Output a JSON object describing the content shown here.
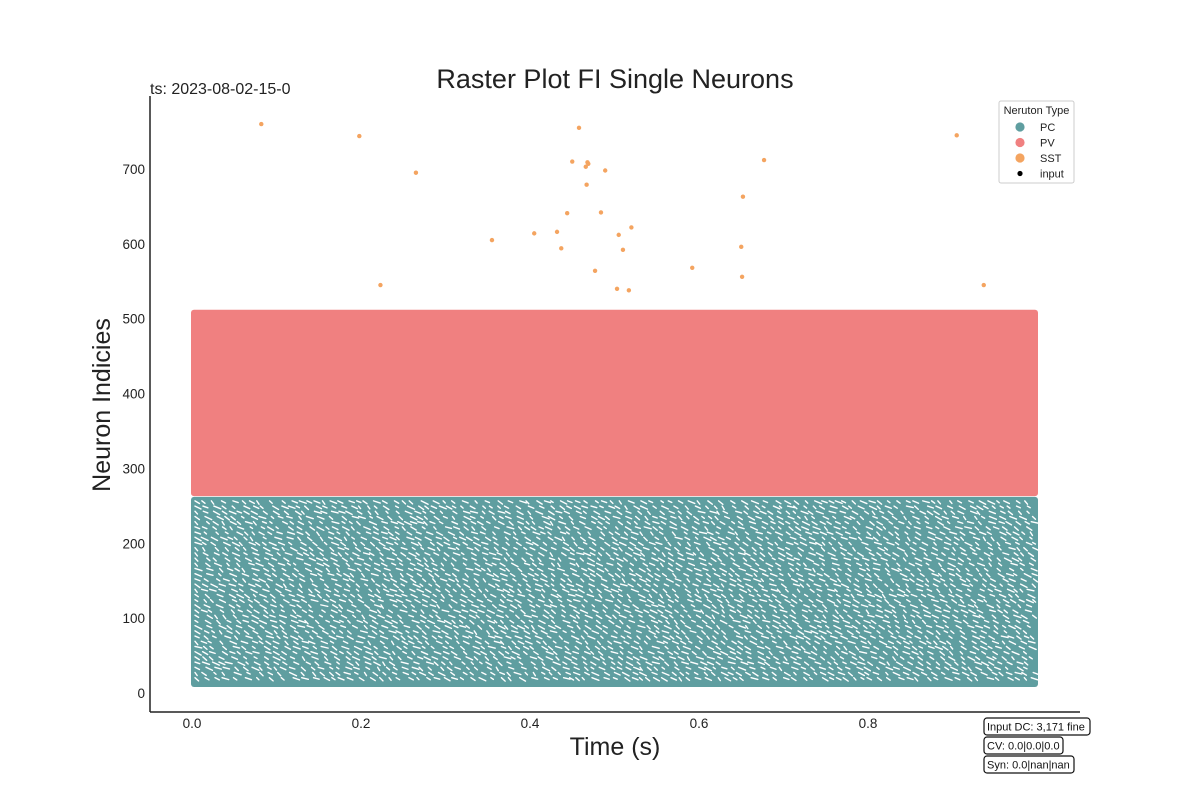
{
  "chart_data": {
    "type": "scatter",
    "title": "Raster Plot FI Single Neurons",
    "timestamp_label": "ts: 2023-08-02-15-0",
    "xlabel": "Time (s)",
    "ylabel": "Neuron Indicies",
    "xlim": [
      -0.05,
      1.05
    ],
    "ylim": [
      -25,
      795
    ],
    "x_ticks": [
      0.0,
      0.2,
      0.4,
      0.6,
      0.8
    ],
    "x_tick_labels": [
      "0.0",
      "0.2",
      "0.4",
      "0.6",
      "0.8"
    ],
    "y_ticks": [
      0,
      100,
      200,
      300,
      400,
      500,
      600,
      700
    ],
    "y_tick_labels": [
      "0",
      "100",
      "200",
      "300",
      "400",
      "500",
      "600",
      "700"
    ],
    "grid": false,
    "legend": {
      "title": "Neruton Type",
      "placement": "top-right",
      "entries": [
        {
          "name": "PC",
          "color": "#5f9ea0"
        },
        {
          "name": "PV",
          "color": "#f08080"
        },
        {
          "name": "SST",
          "color": "#f4a460"
        },
        {
          "name": "input",
          "color": "#000000"
        }
      ]
    },
    "series": [
      {
        "name": "PC",
        "color": "#5f9ea0",
        "neuron_range": [
          12,
          262
        ],
        "time_range": [
          0.0,
          1.0
        ],
        "description_values": "dense periodic firing across all PC neurons"
      },
      {
        "name": "PV",
        "color": "#f08080",
        "neuron_range": [
          263,
          512
        ],
        "time_range": [
          0.0,
          1.0
        ],
        "description_values": "dense continuous firing across all PV neurons"
      },
      {
        "name": "SST",
        "color": "#f4a460",
        "points": [
          [
            0.082,
            760
          ],
          [
            0.198,
            744
          ],
          [
            0.265,
            695
          ],
          [
            0.223,
            545
          ],
          [
            0.355,
            605
          ],
          [
            0.405,
            614
          ],
          [
            0.432,
            616
          ],
          [
            0.437,
            594
          ],
          [
            0.444,
            641
          ],
          [
            0.45,
            710
          ],
          [
            0.458,
            755
          ],
          [
            0.466,
            703
          ],
          [
            0.468,
            709
          ],
          [
            0.469,
            707
          ],
          [
            0.467,
            679
          ],
          [
            0.477,
            564
          ],
          [
            0.484,
            642
          ],
          [
            0.489,
            698
          ],
          [
            0.503,
            540
          ],
          [
            0.505,
            612
          ],
          [
            0.51,
            592
          ],
          [
            0.517,
            538
          ],
          [
            0.52,
            622
          ],
          [
            0.592,
            568
          ],
          [
            0.65,
            596
          ],
          [
            0.651,
            556
          ],
          [
            0.652,
            663
          ],
          [
            0.677,
            712
          ],
          [
            0.905,
            745
          ],
          [
            0.937,
            545
          ]
        ]
      },
      {
        "name": "input",
        "color": "#000000",
        "points": []
      }
    ],
    "info_boxes": [
      "Input DC: 3,171 fine",
      "CV: 0.0|0.0|0.0",
      "Syn: 0.0|nan|nan"
    ]
  }
}
